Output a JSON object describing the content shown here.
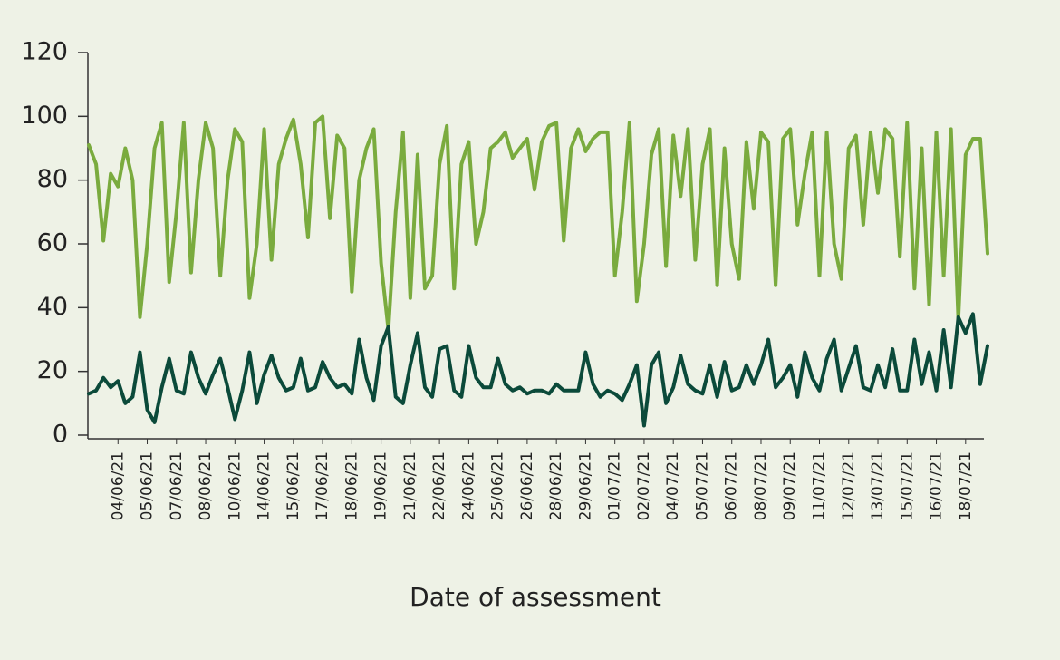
{
  "chart_data": {
    "type": "line",
    "x_label": "Date of assessment",
    "categories": [
      null,
      null,
      null,
      null,
      "04/06/21",
      null,
      null,
      null,
      "05/06/21",
      null,
      null,
      null,
      "07/06/21",
      null,
      null,
      null,
      "08/06/21",
      null,
      null,
      null,
      "10/06/21",
      null,
      null,
      null,
      "14/06/21",
      null,
      null,
      null,
      "15/06/21",
      null,
      null,
      null,
      "17/06/21",
      null,
      null,
      null,
      "18/06/21",
      null,
      null,
      null,
      "19/06/21",
      null,
      null,
      null,
      "21/06/21",
      null,
      null,
      null,
      "22/06/21",
      null,
      null,
      null,
      "24/06/21",
      null,
      null,
      null,
      "25/06/21",
      null,
      null,
      null,
      "26/06/21",
      null,
      null,
      null,
      "28/06/21",
      null,
      null,
      null,
      "29/06/21",
      null,
      null,
      null,
      "01/07/21",
      null,
      null,
      null,
      "02/07/21",
      null,
      null,
      null,
      "04/07/21",
      null,
      null,
      null,
      "05/07/21",
      null,
      null,
      null,
      "06/07/21",
      null,
      null,
      null,
      "08/07/21",
      null,
      null,
      null,
      "09/07/21",
      null,
      null,
      null,
      "11/07/21",
      null,
      null,
      null,
      "12/07/21",
      null,
      null,
      null,
      "13/07/21",
      null,
      null,
      null,
      "15/07/21",
      null,
      null,
      null,
      "16/07/21",
      null,
      null,
      null,
      "18/07/21",
      null,
      null,
      null
    ],
    "series": [
      {
        "color": "#7aab3e",
        "values": [
          91,
          85,
          61,
          82,
          78,
          90,
          80,
          37,
          60,
          90,
          98,
          48,
          70,
          98,
          51,
          80,
          98,
          90,
          50,
          80,
          96,
          92,
          43,
          60,
          96,
          55,
          85,
          93,
          99,
          85,
          62,
          98,
          100,
          68,
          94,
          90,
          45,
          80,
          90,
          96,
          54,
          33,
          70,
          95,
          43,
          88,
          46,
          50,
          85,
          97,
          46,
          85,
          92,
          60,
          70,
          90,
          92,
          95,
          87,
          90,
          93,
          77,
          92,
          97,
          98,
          61,
          90,
          96,
          89,
          93,
          95,
          95,
          50,
          70,
          98,
          42,
          60,
          88,
          96,
          53,
          94,
          75,
          96,
          55,
          85,
          96,
          47,
          90,
          60,
          49,
          92,
          71,
          95,
          92,
          47,
          93,
          96,
          66,
          82,
          95,
          50,
          95,
          60,
          49,
          90,
          94,
          66,
          95,
          76,
          96,
          93,
          56,
          98,
          46,
          90,
          41,
          95,
          50,
          96,
          36,
          88,
          93,
          93,
          57
        ]
      },
      {
        "color": "#0b4a3a",
        "values": [
          13,
          14,
          18,
          15,
          17,
          10,
          12,
          26,
          8,
          4,
          15,
          24,
          14,
          13,
          26,
          18,
          13,
          19,
          24,
          15,
          5,
          14,
          26,
          10,
          19,
          25,
          18,
          14,
          15,
          24,
          14,
          15,
          23,
          18,
          15,
          16,
          13,
          30,
          18,
          11,
          28,
          34,
          12,
          10,
          22,
          32,
          15,
          12,
          27,
          28,
          14,
          12,
          28,
          18,
          15,
          15,
          24,
          16,
          14,
          15,
          13,
          14,
          14,
          13,
          16,
          14,
          14,
          14,
          26,
          16,
          12,
          14,
          13,
          11,
          16,
          22,
          3,
          22,
          26,
          10,
          15,
          25,
          16,
          14,
          13,
          22,
          12,
          23,
          14,
          15,
          22,
          16,
          22,
          30,
          15,
          18,
          22,
          12,
          26,
          18,
          14,
          24,
          30,
          14,
          21,
          28,
          15,
          14,
          22,
          15,
          27,
          14,
          14,
          30,
          16,
          26,
          14,
          33,
          15,
          37,
          32,
          38,
          16,
          28
        ]
      }
    ],
    "ylim": [
      0,
      120
    ],
    "yticks": [
      0,
      20,
      40,
      60,
      80,
      100,
      120
    ]
  }
}
